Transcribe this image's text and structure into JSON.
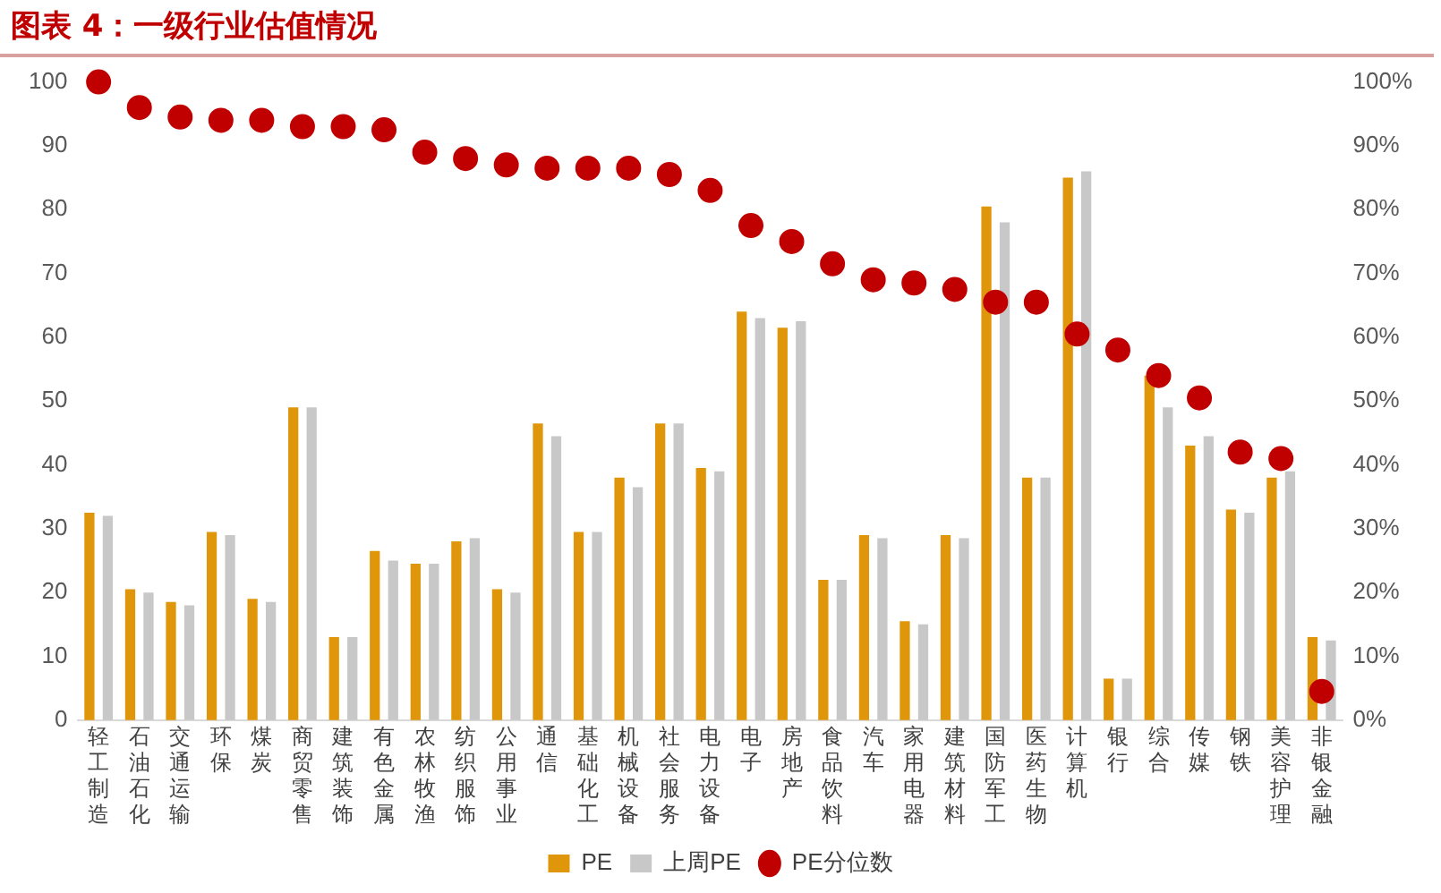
{
  "chart_data": {
    "type": "bar",
    "title": "图表 4：一级行业估值情况",
    "categories": [
      "轻工制造",
      "石油石化",
      "交通运输",
      "环保",
      "煤炭",
      "商贸零售",
      "建筑装饰",
      "有色金属",
      "农林牧渔",
      "纺织服饰",
      "公用事业",
      "通信",
      "基础化工",
      "机械设备",
      "社会服务",
      "电力设备",
      "电子",
      "房地产",
      "食品饮料",
      "汽车",
      "家用电器",
      "建筑材料",
      "国防军工",
      "医药生物",
      "计算机",
      "银行",
      "综合",
      "传媒",
      "钢铁",
      "美容护理",
      "非银金融"
    ],
    "series": [
      {
        "name": "PE",
        "color": "#e0960a",
        "values": [
          32.5,
          20.5,
          18.5,
          29.5,
          19,
          49,
          13,
          26.5,
          24.5,
          28,
          20.5,
          46.5,
          29.5,
          38,
          46.5,
          39.5,
          64,
          61.5,
          22,
          29,
          15.5,
          29,
          80.5,
          38,
          85,
          6.5,
          54,
          43,
          33,
          38,
          13
        ]
      },
      {
        "name": "上周PE",
        "color": "#c8c8c8",
        "values": [
          32,
          20,
          18,
          29,
          18.5,
          49,
          13,
          25,
          24.5,
          28.5,
          20,
          44.5,
          29.5,
          36.5,
          46.5,
          39,
          63,
          62.5,
          22,
          28.5,
          15,
          28.5,
          78,
          38,
          86,
          6.5,
          49,
          44.5,
          32.5,
          39,
          12.5
        ]
      },
      {
        "name": "PE分位数",
        "type": "scatter",
        "axis": "y2",
        "color": "#c00000",
        "values": [
          100,
          96,
          94.5,
          94,
          94,
          93,
          93,
          92.5,
          89,
          88,
          87,
          86.5,
          86.5,
          86.5,
          85.5,
          83,
          77.5,
          75,
          71.5,
          69,
          68.5,
          67.5,
          65.5,
          65.5,
          60.5,
          58,
          54,
          50.5,
          42,
          41,
          4.5
        ]
      }
    ],
    "ylim": [
      0,
      100
    ],
    "yticks": [
      0,
      10,
      20,
      30,
      40,
      50,
      60,
      70,
      80,
      90,
      100
    ],
    "y2lim": [
      0,
      100
    ],
    "y2ticks": [
      {
        "value": 0,
        "label": "0%"
      },
      {
        "value": 10,
        "label": "10%"
      },
      {
        "value": 20,
        "label": "20%"
      },
      {
        "value": 30,
        "label": "30%"
      },
      {
        "value": 40,
        "label": "40%"
      },
      {
        "value": 50,
        "label": "50%"
      },
      {
        "value": 60,
        "label": "60%"
      },
      {
        "value": 70,
        "label": "70%"
      },
      {
        "value": 80,
        "label": "80%"
      },
      {
        "value": 90,
        "label": "90%"
      },
      {
        "value": 100,
        "label": "100%"
      }
    ],
    "grid": false,
    "legend": "bottom",
    "marker": "circle"
  }
}
